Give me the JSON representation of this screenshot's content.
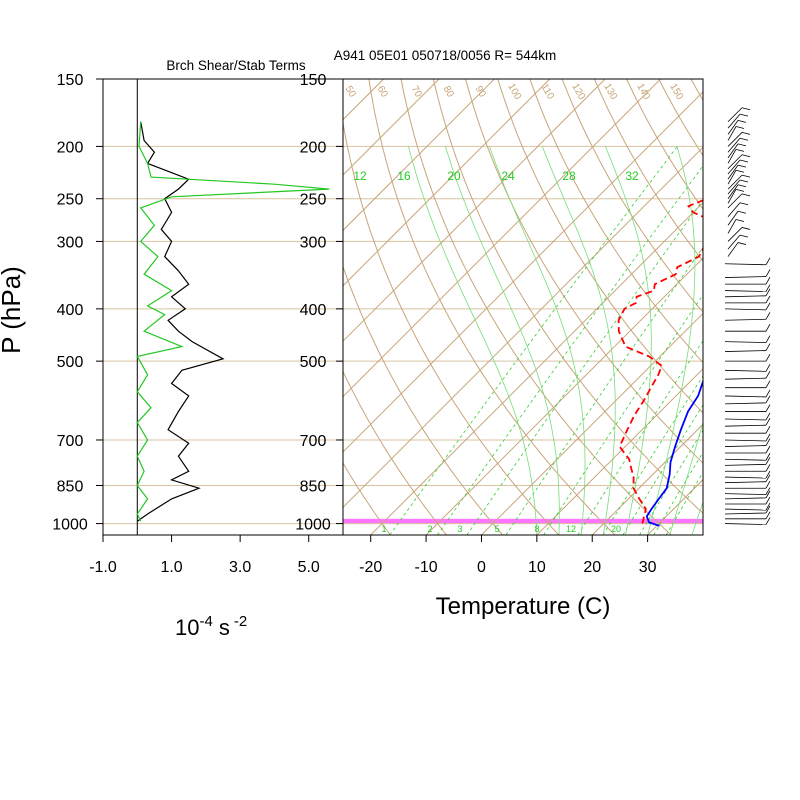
{
  "chart_data": [
    {
      "type": "line",
      "title": "Brch Shear/Stab Terms",
      "xlabel_base": "10",
      "xlabel_exp": "-4",
      "xlabel_unit": "s",
      "xlabel_unit_exp": "-2",
      "ylabel": "P (hPa)",
      "xlim": [
        -1.0,
        6.0
      ],
      "x_ticks": [
        -1.0,
        1.0,
        3.0,
        5.0
      ],
      "x_tick_labels": [
        "-1.0",
        "1.0",
        "3.0",
        "5.0"
      ],
      "ylim": [
        1050,
        150
      ],
      "y_scale": "log",
      "y_ticks": [
        150,
        200,
        250,
        300,
        400,
        500,
        700,
        850,
        1000
      ],
      "y_tick_labels": [
        "150",
        "200",
        "250",
        "300",
        "400",
        "500",
        "700",
        "850",
        "1000"
      ],
      "series": [
        {
          "color": "#000000",
          "points": [
            [
              0.1,
              180
            ],
            [
              0.2,
              195
            ],
            [
              0.5,
              205
            ],
            [
              0.3,
              215
            ],
            [
              1.5,
              230
            ],
            [
              1.2,
              240
            ],
            [
              0.8,
              250
            ],
            [
              1.0,
              265
            ],
            [
              0.7,
              285
            ],
            [
              1.0,
              300
            ],
            [
              0.8,
              320
            ],
            [
              1.2,
              340
            ],
            [
              1.5,
              360
            ],
            [
              1.0,
              380
            ],
            [
              1.4,
              400
            ],
            [
              0.9,
              420
            ],
            [
              1.2,
              440
            ],
            [
              1.6,
              460
            ],
            [
              2.5,
              495
            ],
            [
              1.3,
              520
            ],
            [
              1.0,
              550
            ],
            [
              1.5,
              580
            ],
            [
              1.2,
              620
            ],
            [
              0.9,
              670
            ],
            [
              1.5,
              710
            ],
            [
              1.2,
              750
            ],
            [
              1.5,
              800
            ],
            [
              1.0,
              830
            ],
            [
              1.8,
              860
            ],
            [
              1.0,
              900
            ],
            [
              0.3,
              960
            ],
            [
              0.0,
              990
            ]
          ]
        },
        {
          "color": "#22c822",
          "points": [
            [
              0.1,
              180
            ],
            [
              0.05,
              200
            ],
            [
              0.3,
              215
            ],
            [
              0.4,
              228
            ],
            [
              4.0,
              235
            ],
            [
              5.6,
              240
            ],
            [
              1.0,
              248
            ],
            [
              0.1,
              260
            ],
            [
              0.5,
              280
            ],
            [
              0.1,
              300
            ],
            [
              0.6,
              320
            ],
            [
              0.2,
              345
            ],
            [
              1.0,
              370
            ],
            [
              0.3,
              395
            ],
            [
              0.8,
              410
            ],
            [
              0.2,
              440
            ],
            [
              1.3,
              470
            ],
            [
              0.0,
              490
            ],
            [
              0.3,
              530
            ],
            [
              0.0,
              570
            ],
            [
              0.4,
              610
            ],
            [
              0.0,
              650
            ],
            [
              0.3,
              700
            ],
            [
              0.0,
              750
            ],
            [
              0.2,
              800
            ],
            [
              0.0,
              850
            ],
            [
              0.3,
              900
            ],
            [
              0.0,
              960
            ],
            [
              0.1,
              990
            ]
          ]
        }
      ]
    },
    {
      "type": "line",
      "title": "A941 05E01 050718/0056 R= 544km",
      "xlabel": "Temperature (C)",
      "ylabel": "",
      "xlim": [
        -25,
        40
      ],
      "x_ticks": [
        -20,
        -10,
        0,
        10,
        20,
        30
      ],
      "x_tick_labels": [
        "-20",
        "-10",
        "0",
        "10",
        "20",
        "30"
      ],
      "ylim": [
        1050,
        150
      ],
      "y_scale": "log",
      "y_ticks": [
        150,
        200,
        250,
        300,
        400,
        500,
        700,
        850,
        1000
      ],
      "y_tick_labels": [
        "150",
        "200",
        "250",
        "300",
        "400",
        "500",
        "700",
        "850",
        "1000"
      ],
      "skew_deg": 45,
      "mixing_ratio_labels": [
        "12",
        "16",
        "20",
        "24",
        "28",
        "32"
      ],
      "mixing_ratio_bottom_labels": [
        "1",
        "2",
        "3",
        "5",
        "8",
        "12",
        "20"
      ],
      "theta_labels": [
        "50",
        "60",
        "70",
        "80",
        "90",
        "100",
        "110",
        "120",
        "130",
        "140",
        "150"
      ],
      "surface_band": [
        980,
        1000
      ],
      "series": [
        {
          "name": "",
          "kind": "temperature",
          "color": "#0000ff",
          "points": [
            [
              30.5,
              1010
            ],
            [
              28,
              995
            ],
            [
              26.5,
              970
            ],
            [
              26,
              940
            ],
            [
              25.5,
              900
            ],
            [
              25,
              860
            ],
            [
              23,
              810
            ],
            [
              21,
              770
            ],
            [
              19,
              720
            ],
            [
              17,
              670
            ],
            [
              15,
              620
            ],
            [
              14,
              580
            ],
            [
              12,
              540
            ],
            [
              10,
              500
            ],
            [
              9,
              470
            ],
            [
              8,
              450
            ],
            [
              7,
              430
            ],
            [
              5,
              400
            ],
            [
              3,
              370
            ],
            [
              1,
              340
            ],
            [
              -1,
              315
            ],
            [
              -3,
              290
            ],
            [
              -4.5,
              265
            ],
            [
              -6,
              245
            ],
            [
              -8,
              225
            ],
            [
              -10,
              205
            ],
            [
              -12,
              190
            ],
            [
              -15,
              175
            ]
          ]
        },
        {
          "name": "",
          "kind": "dewpoint",
          "color": "#ff0000",
          "points": [
            [
              27,
              1000
            ],
            [
              26,
              970
            ],
            [
              25,
              940
            ],
            [
              22,
              900
            ],
            [
              19,
              860
            ],
            [
              17,
              820
            ],
            [
              15,
              790
            ],
            [
              13,
              760
            ],
            [
              11,
              740
            ],
            [
              9,
              720
            ],
            [
              8,
              690
            ],
            [
              7,
              660
            ],
            [
              6,
              630
            ],
            [
              5,
              590
            ],
            [
              4,
              560
            ],
            [
              3,
              530
            ],
            [
              2,
              510
            ],
            [
              -2,
              490
            ],
            [
              -8,
              470
            ],
            [
              -12,
              440
            ],
            [
              -14,
              420
            ],
            [
              -15,
              400
            ],
            [
              -14,
              390
            ],
            [
              -15,
              380
            ],
            [
              -13,
              370
            ],
            [
              -14,
              360
            ],
            [
              -12,
              345
            ],
            [
              -13,
              335
            ],
            [
              -11,
              320
            ],
            [
              -12,
              305
            ],
            [
              -11,
              295
            ],
            [
              -13,
              285
            ],
            [
              -15,
              275
            ],
            [
              -20,
              265
            ],
            [
              -22,
              258
            ],
            [
              -20,
              250
            ],
            [
              -18,
              243
            ],
            [
              -17,
              235
            ],
            [
              -17,
              228
            ],
            [
              -18,
              222
            ],
            [
              -20,
              215
            ],
            [
              -24,
              205
            ],
            [
              -27,
              198
            ]
          ]
        }
      ]
    }
  ],
  "wind_barbs": {
    "pressure_levels_hpa": [
      180,
      185,
      190,
      195,
      200,
      205,
      210,
      215,
      220,
      225,
      230,
      235,
      240,
      245,
      250,
      255,
      260,
      270,
      280,
      290,
      300,
      310,
      320,
      330,
      350,
      360,
      370,
      380,
      390,
      400,
      420,
      440,
      460,
      480,
      500,
      520,
      540,
      560,
      580,
      600,
      620,
      640,
      660,
      680,
      700,
      720,
      740,
      760,
      780,
      800,
      820,
      840,
      860,
      880,
      900,
      920,
      940,
      960,
      980,
      1000
    ]
  }
}
